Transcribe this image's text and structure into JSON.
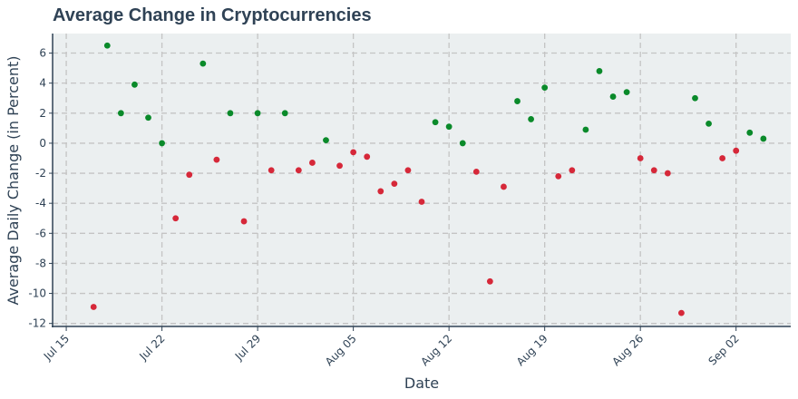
{
  "chart_data": {
    "type": "scatter",
    "title": "Average Change in Cryptocurrencies",
    "xlabel": "Date",
    "ylabel": "Average Daily Change (in Percent)",
    "x_ticks": [
      "Jul 15",
      "Jul 22",
      "Jul 29",
      "Aug 05",
      "Aug 12",
      "Aug 19",
      "Aug 26",
      "Sep 02"
    ],
    "x_tick_dates": [
      "2024-07-15",
      "2024-07-22",
      "2024-07-29",
      "2024-08-05",
      "2024-08-12",
      "2024-08-19",
      "2024-08-26",
      "2024-09-02"
    ],
    "xlim": [
      "2024-07-14",
      "2024-09-06"
    ],
    "y_ticks": [
      6,
      4,
      2,
      0,
      -2,
      -4,
      -6,
      -8,
      -10,
      -12
    ],
    "ylim": [
      -12.2,
      7.3
    ],
    "grid": true,
    "colors": {
      "positive": "#0a8a2a",
      "negative": "#d62839",
      "background": "#ebeff0",
      "grid": "#c4c4c4",
      "axis": "#2f4255"
    },
    "points": [
      {
        "x": "2024-07-17",
        "y": -10.9
      },
      {
        "x": "2024-07-18",
        "y": 6.5
      },
      {
        "x": "2024-07-19",
        "y": 2.0
      },
      {
        "x": "2024-07-20",
        "y": 3.9
      },
      {
        "x": "2024-07-21",
        "y": 1.7
      },
      {
        "x": "2024-07-22",
        "y": 0.0
      },
      {
        "x": "2024-07-23",
        "y": -5.0
      },
      {
        "x": "2024-07-24",
        "y": -2.1
      },
      {
        "x": "2024-07-25",
        "y": 5.3
      },
      {
        "x": "2024-07-26",
        "y": -1.1
      },
      {
        "x": "2024-07-27",
        "y": 2.0
      },
      {
        "x": "2024-07-28",
        "y": -5.2
      },
      {
        "x": "2024-07-29",
        "y": 2.0
      },
      {
        "x": "2024-07-30",
        "y": -1.8
      },
      {
        "x": "2024-07-31",
        "y": 2.0
      },
      {
        "x": "2024-08-01",
        "y": -1.8
      },
      {
        "x": "2024-08-02",
        "y": -1.3
      },
      {
        "x": "2024-08-03",
        "y": 0.2
      },
      {
        "x": "2024-08-04",
        "y": -1.5
      },
      {
        "x": "2024-08-05",
        "y": -0.6
      },
      {
        "x": "2024-08-06",
        "y": -0.9
      },
      {
        "x": "2024-08-07",
        "y": -3.2
      },
      {
        "x": "2024-08-08",
        "y": -2.7
      },
      {
        "x": "2024-08-09",
        "y": -1.8
      },
      {
        "x": "2024-08-10",
        "y": -3.9
      },
      {
        "x": "2024-08-11",
        "y": 1.4
      },
      {
        "x": "2024-08-12",
        "y": 1.1
      },
      {
        "x": "2024-08-13",
        "y": 0.0
      },
      {
        "x": "2024-08-14",
        "y": -1.9
      },
      {
        "x": "2024-08-15",
        "y": -9.2
      },
      {
        "x": "2024-08-16",
        "y": -2.9
      },
      {
        "x": "2024-08-17",
        "y": 2.8
      },
      {
        "x": "2024-08-18",
        "y": 1.6
      },
      {
        "x": "2024-08-19",
        "y": 3.7
      },
      {
        "x": "2024-08-20",
        "y": -2.2
      },
      {
        "x": "2024-08-21",
        "y": -1.8
      },
      {
        "x": "2024-08-22",
        "y": 0.9
      },
      {
        "x": "2024-08-23",
        "y": 4.8
      },
      {
        "x": "2024-08-24",
        "y": 3.1
      },
      {
        "x": "2024-08-25",
        "y": 3.4
      },
      {
        "x": "2024-08-26",
        "y": -1.0
      },
      {
        "x": "2024-08-27",
        "y": -1.8
      },
      {
        "x": "2024-08-28",
        "y": -2.0
      },
      {
        "x": "2024-08-29",
        "y": -11.3
      },
      {
        "x": "2024-08-30",
        "y": 3.0
      },
      {
        "x": "2024-08-31",
        "y": 1.3
      },
      {
        "x": "2024-09-01",
        "y": -1.0
      },
      {
        "x": "2024-09-02",
        "y": -0.5
      },
      {
        "x": "2024-09-03",
        "y": 0.7
      },
      {
        "x": "2024-09-04",
        "y": 0.3
      }
    ]
  }
}
